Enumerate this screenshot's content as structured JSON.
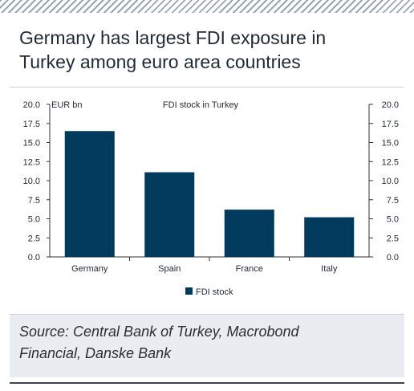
{
  "title_lines": [
    "Germany has largest FDI exposure in",
    "Turkey among euro area countries"
  ],
  "source_lines": [
    "Source: Central Bank of Turkey, Macrobond",
    "Financial, Danske Bank"
  ],
  "colors": {
    "bar": "#003a5d",
    "text": "#1f2a33",
    "stripes": "#9aa7b3",
    "source_bg": "#e9edf1"
  },
  "chart_data": {
    "type": "bar",
    "title": "FDI stock in Turkey",
    "unit_label": "EUR bn",
    "categories": [
      "Germany",
      "Spain",
      "France",
      "Italy"
    ],
    "series": [
      {
        "name": "FDI stock",
        "values": [
          16.5,
          11.1,
          6.2,
          5.2
        ]
      }
    ],
    "ylim": [
      0,
      20
    ],
    "yticks": [
      "0.0",
      "2.5",
      "5.0",
      "7.5",
      "10.0",
      "12.5",
      "15.0",
      "17.5",
      "20.0"
    ],
    "legend_position": "bottom-center",
    "grid": false
  }
}
